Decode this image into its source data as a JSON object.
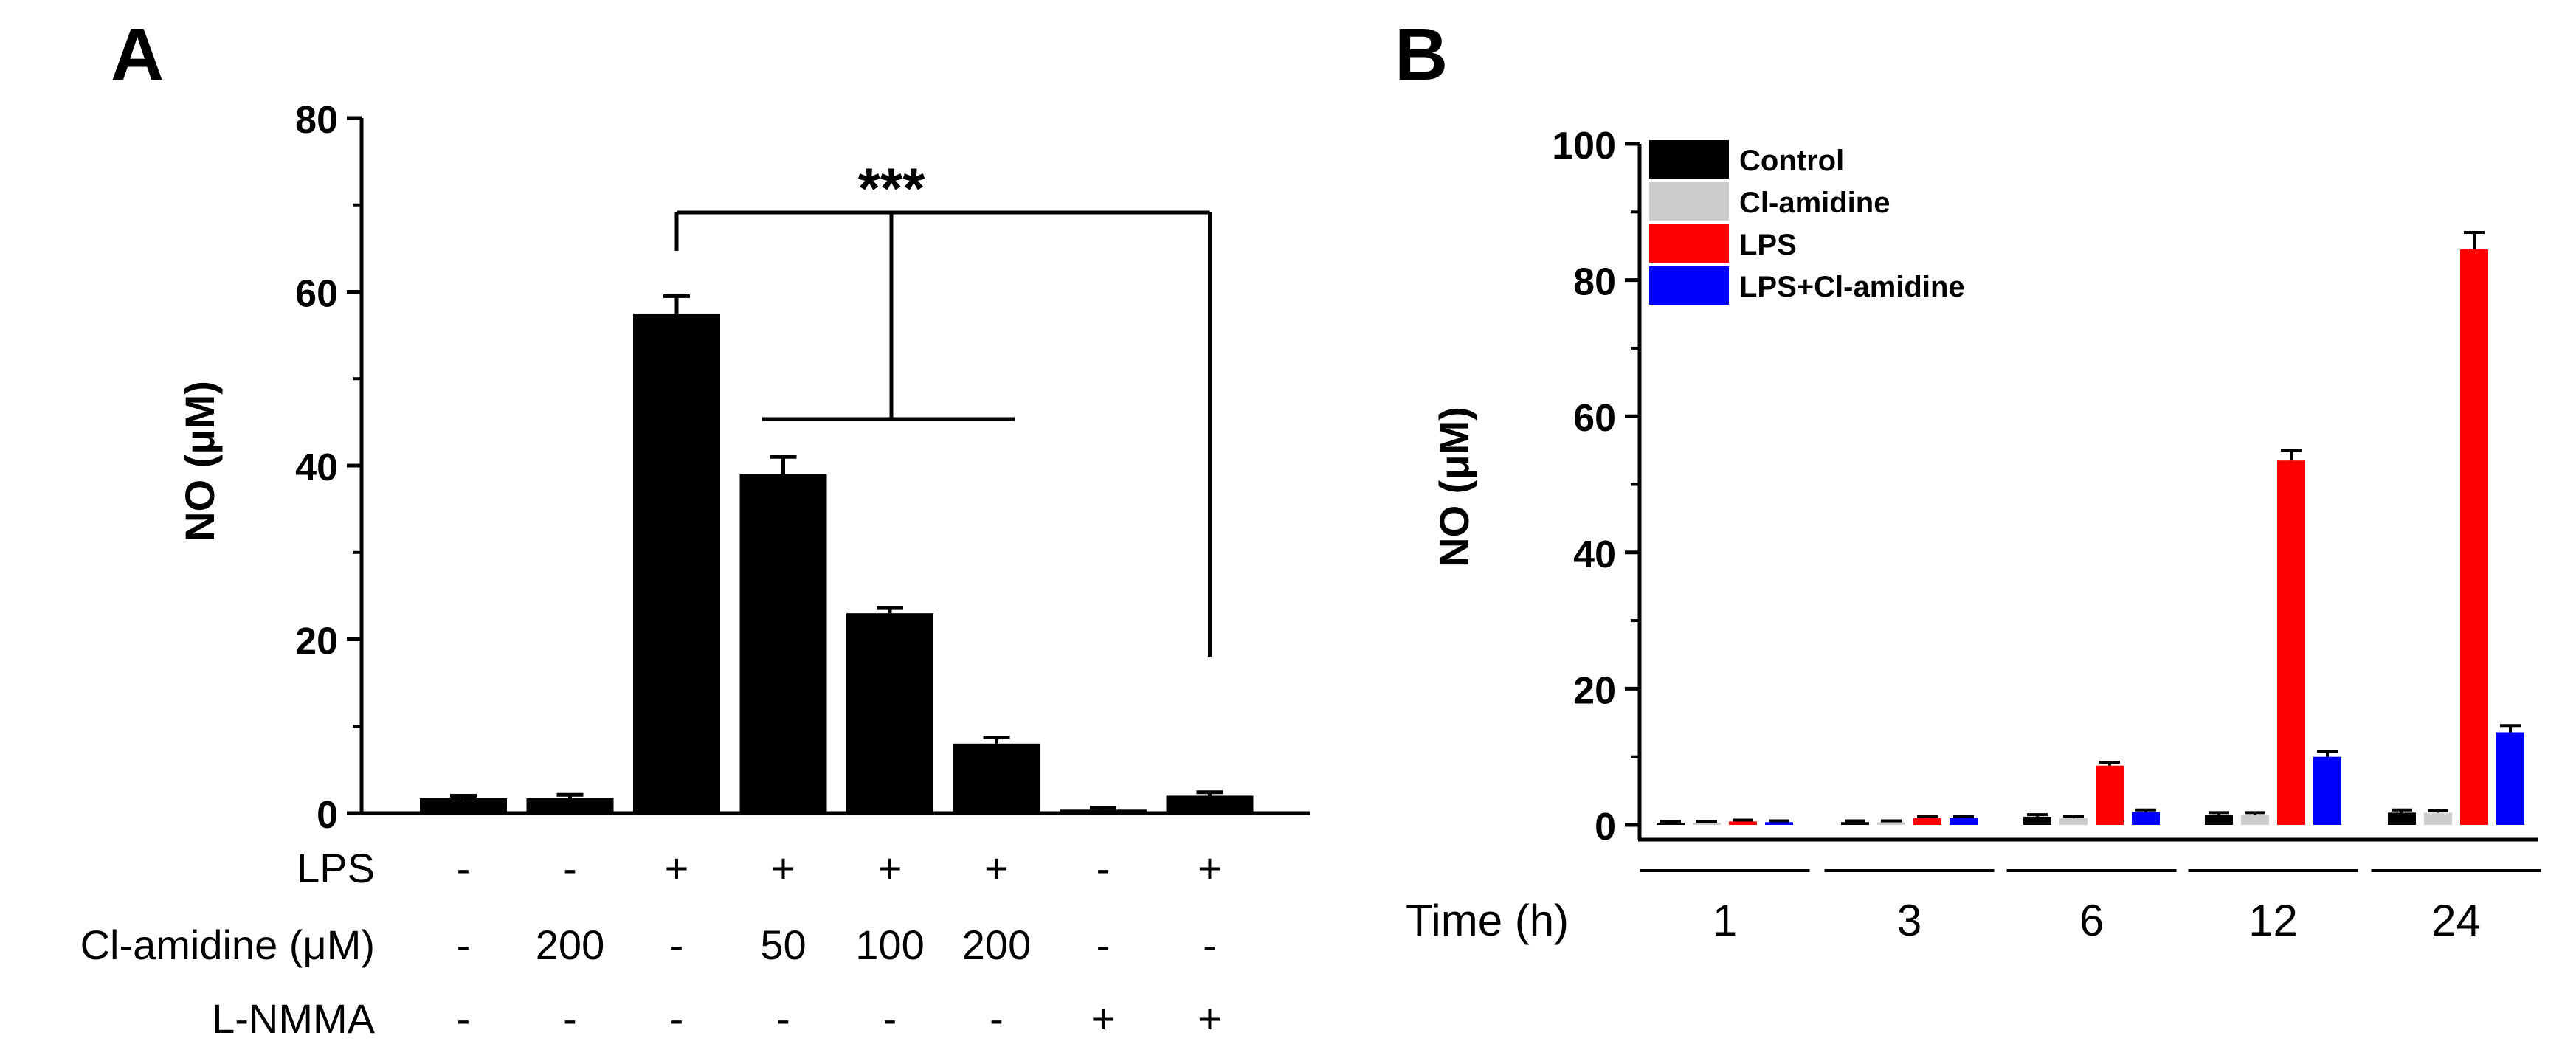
{
  "chart_data": [
    {
      "panel_label": "A",
      "type": "bar",
      "ylabel": "NO (μM)",
      "ylim": [
        0,
        80
      ],
      "yticks": [
        0,
        20,
        40,
        60,
        80
      ],
      "values": [
        1.7,
        1.7,
        57.5,
        39.0,
        23.0,
        8.0,
        0.4,
        2.0
      ],
      "errors": [
        0.3,
        0.4,
        2.0,
        2.0,
        0.6,
        0.7,
        0.2,
        0.4
      ],
      "bar_color": "#000000",
      "condition_rows": [
        {
          "label": "LPS",
          "values": [
            "-",
            "-",
            "+",
            "+",
            "+",
            "+",
            "-",
            "+"
          ]
        },
        {
          "label": "Cl-amidine (μM)",
          "values": [
            "-",
            "200",
            "-",
            "50",
            "100",
            "200",
            "-",
            "-"
          ]
        },
        {
          "label": "L-NMMA",
          "values": [
            "-",
            "-",
            "-",
            "-",
            "-",
            "-",
            "+",
            "+"
          ]
        }
      ],
      "significance": {
        "label": "***",
        "reference_bar": 3,
        "compared_bars": [
          4,
          5,
          6,
          8
        ]
      }
    },
    {
      "panel_label": "B",
      "type": "bar",
      "ylabel": "NO (μM)",
      "xlabel": "Time (h)",
      "ylim": [
        0,
        100
      ],
      "yticks": [
        0,
        20,
        40,
        60,
        80,
        100
      ],
      "categories": [
        "1",
        "3",
        "6",
        "12",
        "24"
      ],
      "series": [
        {
          "name": "Control",
          "color": "#000000",
          "values": [
            0.3,
            0.4,
            1.2,
            1.5,
            1.8
          ],
          "errors": [
            0.2,
            0.2,
            0.3,
            0.3,
            0.4
          ]
        },
        {
          "name": "Cl-amidine",
          "color": "#cccccc",
          "values": [
            0.3,
            0.4,
            1.0,
            1.5,
            1.8
          ],
          "errors": [
            0.2,
            0.2,
            0.3,
            0.3,
            0.3
          ]
        },
        {
          "name": "LPS",
          "color": "#ff0000",
          "values": [
            0.5,
            1.0,
            8.7,
            53.5,
            84.5
          ],
          "errors": [
            0.2,
            0.2,
            0.5,
            1.5,
            2.5
          ]
        },
        {
          "name": "LPS+Cl-amidine",
          "color": "#0000ff",
          "values": [
            0.4,
            1.0,
            1.9,
            10.0,
            13.6
          ],
          "errors": [
            0.2,
            0.2,
            0.3,
            0.8,
            1.0
          ]
        }
      ]
    }
  ]
}
